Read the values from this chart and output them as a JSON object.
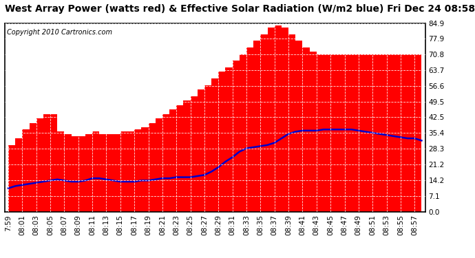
{
  "title": "West Array Power (watts red) & Effective Solar Radiation (W/m2 blue) Fri Dec 24 08:58",
  "copyright": "Copyright 2010 Cartronics.com",
  "background_color": "#ffffff",
  "plot_bg_color": "#ffffff",
  "x_labels": [
    "7:59",
    "08:01",
    "08:03",
    "08:05",
    "08:07",
    "08:09",
    "08:11",
    "08:13",
    "08:15",
    "08:17",
    "08:19",
    "08:21",
    "08:23",
    "08:25",
    "08:27",
    "08:29",
    "08:31",
    "08:33",
    "08:35",
    "08:37",
    "08:39",
    "08:41",
    "08:43",
    "08:45",
    "08:47",
    "08:49",
    "08:51",
    "08:53",
    "08:55",
    "08:57"
  ],
  "yaxis_ticks": [
    0.0,
    7.1,
    14.2,
    21.2,
    28.3,
    35.4,
    42.5,
    49.5,
    56.6,
    63.7,
    70.8,
    77.9,
    84.9
  ],
  "ylim": [
    0,
    84.9
  ],
  "red_data": [
    27,
    30,
    33,
    37,
    40,
    42,
    44,
    44,
    36,
    35,
    34,
    34,
    35,
    36,
    35,
    35,
    35,
    36,
    36,
    37,
    38,
    40,
    42,
    44,
    46,
    48,
    50,
    52,
    55,
    57,
    60,
    63,
    65,
    68,
    71,
    74,
    77,
    80,
    83,
    84,
    83,
    80,
    77,
    74,
    72,
    71,
    71,
    71,
    71,
    71,
    71,
    71,
    71,
    71,
    71,
    71,
    71,
    71,
    71,
    71
  ],
  "blue_data": [
    10.5,
    11.5,
    12.0,
    12.5,
    13.0,
    13.5,
    14.0,
    14.5,
    14.0,
    13.5,
    13.5,
    14.0,
    15.0,
    15.0,
    14.5,
    14.0,
    13.5,
    13.5,
    13.5,
    14.0,
    14.0,
    14.5,
    15.0,
    15.0,
    15.5,
    15.5,
    15.5,
    16.0,
    16.5,
    18.0,
    20.0,
    22.5,
    24.5,
    27.0,
    28.5,
    29.0,
    29.5,
    30.0,
    31.0,
    33.0,
    35.0,
    36.0,
    36.5,
    36.5,
    36.5,
    37.0,
    37.0,
    37.0,
    37.0,
    37.0,
    36.5,
    36.0,
    35.5,
    35.0,
    34.5,
    34.0,
    33.5,
    33.0,
    33.0,
    32.0
  ],
  "red_color": "#ff0000",
  "blue_color": "#0000cc",
  "grid_color": "#bbbbbb",
  "title_fontsize": 10,
  "tick_fontsize": 7.5,
  "copyright_fontsize": 7,
  "border_color": "#000000"
}
